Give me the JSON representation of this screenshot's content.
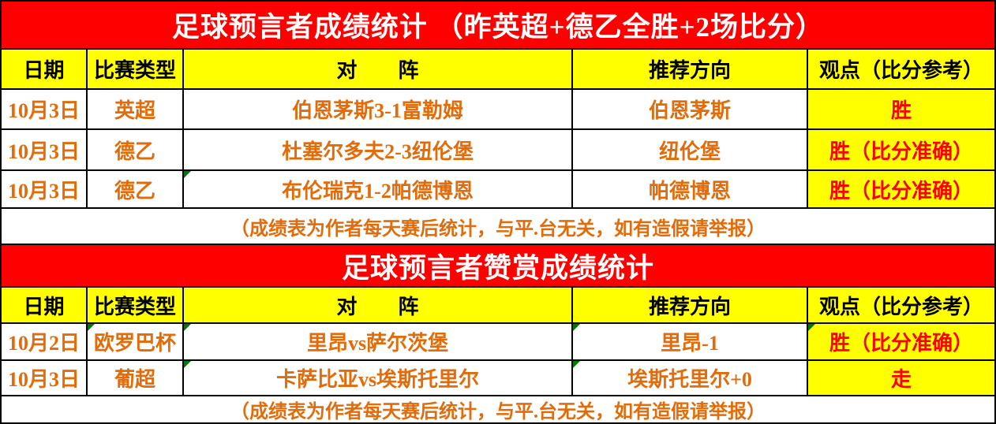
{
  "colors": {
    "title_background_red": "#FF0000",
    "header_cell_yellow": "#FFFF00",
    "body_text_orange": "#E26B0A",
    "result_text_red": "#FE0000",
    "marker_green": "#007A00",
    "grid_line_black": "#000000",
    "title_text_white": "#FFFFFF"
  },
  "sections": [
    {
      "title": "足球预言者成绩统计 （昨英超+德乙全胜+2场比分）",
      "columns": {
        "date": "日期",
        "type": "比赛类型",
        "match": "对　　阵",
        "direction": "推荐方向",
        "view": "观点（比分参考）"
      },
      "rows": [
        {
          "date": "10月3日",
          "type": "英超",
          "match": "伯恩茅斯3-1富勒姆",
          "direction": "伯恩茅斯",
          "view": "胜"
        },
        {
          "date": "10月3日",
          "type": "德乙",
          "match": "杜塞尔多夫2-3纽伦堡",
          "direction": "纽伦堡",
          "view": "胜（比分准确）"
        },
        {
          "date": "10月3日",
          "type": "德乙",
          "match": "布伦瑞克1-2帕德博恩",
          "direction": "帕德博恩",
          "view": "胜（比分准确）"
        }
      ],
      "footer": "（成绩表为作者每天赛后统计，与平.台无关，如有造假请举报）"
    },
    {
      "title": "足球预言者赞赏成绩统计",
      "columns": {
        "date": "日期",
        "type": "比赛类型",
        "match": "对　　阵",
        "direction": "推荐方向",
        "view": "观点（比分参考）"
      },
      "rows": [
        {
          "date": "10月2日",
          "type": "欧罗巴杯",
          "match": "里昂vs萨尔茨堡",
          "direction": "里昂-1",
          "view": "胜（比分准确）"
        },
        {
          "date": "10月3日",
          "type": "葡超",
          "match": "卡萨比亚vs埃斯托里尔",
          "direction": "埃斯托里尔+0",
          "view": "走"
        }
      ],
      "footer": "（成绩表为作者每天赛后统计，与平.台无关，如有造假请举报）"
    }
  ]
}
